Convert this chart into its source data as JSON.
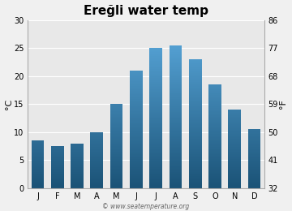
{
  "title": "Ereğli water temp",
  "months": [
    "J",
    "F",
    "M",
    "A",
    "M",
    "J",
    "J",
    "A",
    "S",
    "O",
    "N",
    "D"
  ],
  "values": [
    8.5,
    7.5,
    8.0,
    10.0,
    15.0,
    21.0,
    25.0,
    25.5,
    23.0,
    18.5,
    14.0,
    10.5
  ],
  "ylim_c": [
    0,
    30
  ],
  "yticks_c": [
    0,
    5,
    10,
    15,
    20,
    25,
    30
  ],
  "yticks_f": [
    32,
    41,
    50,
    59,
    68,
    77,
    86
  ],
  "ylabel_left": "°C",
  "ylabel_right": "°F",
  "bar_color_bottom": "#1a5276",
  "bar_color_top": "#5dade2",
  "bg_color": "#e8e8e8",
  "figure_bg": "#f0f0f0",
  "watermark": "© www.seatemperature.org",
  "title_fontsize": 11,
  "tick_fontsize": 7,
  "label_fontsize": 8,
  "bar_width": 0.65,
  "segments": 200,
  "grid_color": "#ffffff",
  "grid_lw": 0.8
}
